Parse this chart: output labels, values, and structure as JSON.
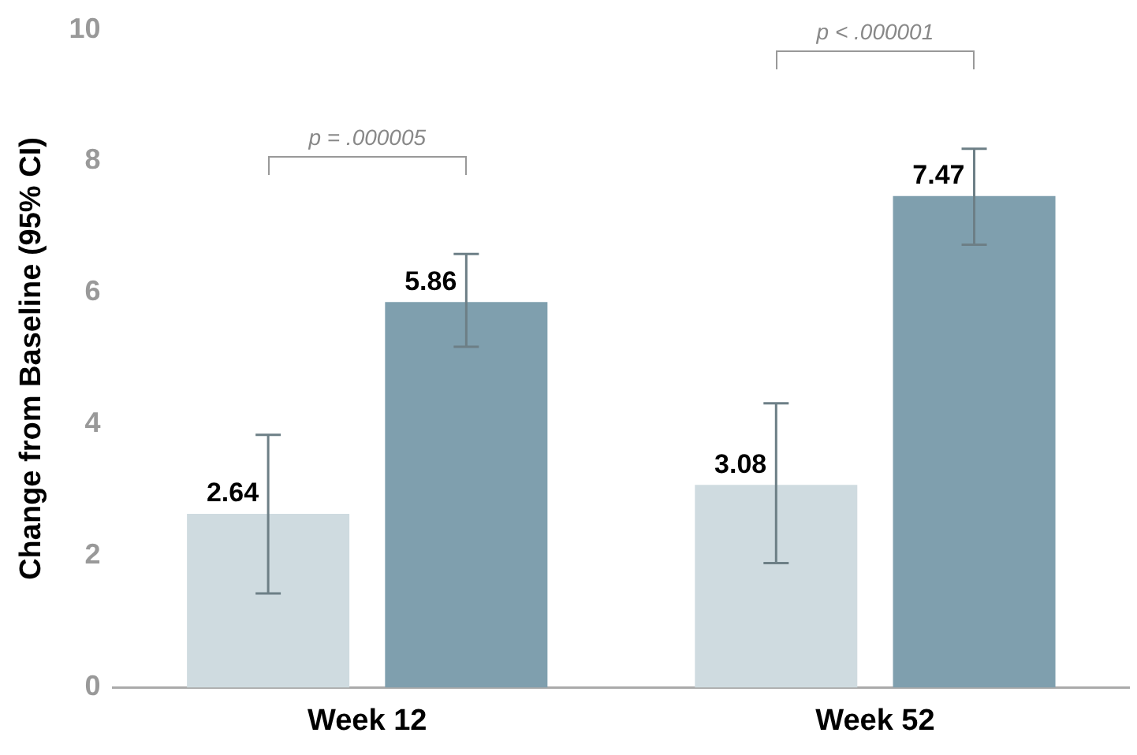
{
  "chart_data": {
    "type": "bar",
    "ylabel": "Change from Baseline (95% CI)",
    "categories": [
      "Week 12",
      "Week 52"
    ],
    "series": [
      {
        "color": "#cfdbe0",
        "values": [
          2.64,
          3.08
        ],
        "errors": [
          [
            1.43,
            3.84
          ],
          [
            1.89,
            4.32
          ]
        ]
      },
      {
        "color": "#7f9fae",
        "values": [
          5.86,
          7.47
        ],
        "errors": [
          [
            5.18,
            6.59
          ],
          [
            6.73,
            8.19
          ]
        ]
      }
    ],
    "ylim": [
      0,
      10
    ],
    "yticks": [
      0,
      2,
      4,
      6,
      8,
      10
    ],
    "grid": false,
    "legend": false,
    "data_labels": true,
    "annotations": [
      "p = .000005",
      "p < .000001"
    ]
  }
}
